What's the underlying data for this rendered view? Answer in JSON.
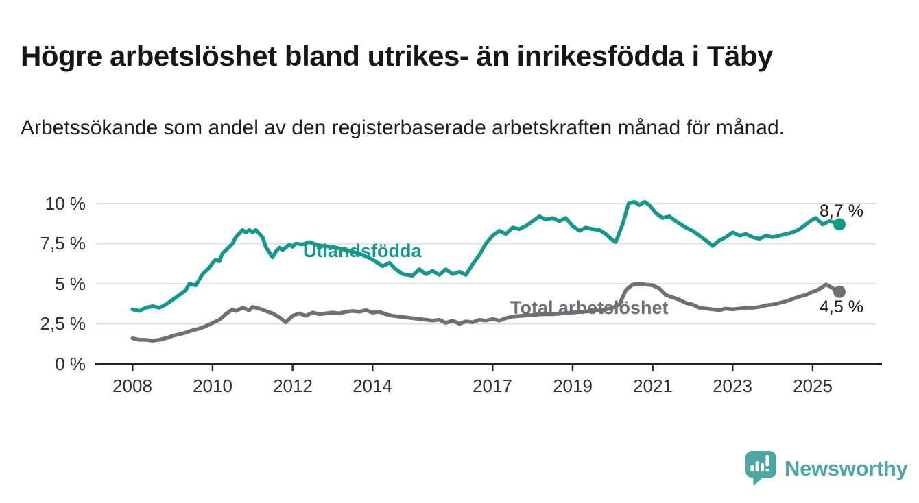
{
  "page": {
    "title": "Högre arbetslöshet bland utrikes- än inrikesfödda i Täby",
    "subtitle": "Arbetssökande som andel av den registerbaserade arbetskraften månad för månad."
  },
  "branding": {
    "name": "Newsworthy",
    "color": "#4BA8A2",
    "icon": "speech-bubble-bar-chart-icon"
  },
  "chart_data": {
    "type": "line",
    "unit": "%",
    "grid": "horizontal",
    "x_axis": {
      "labels": [
        "2008",
        "2010",
        "2012",
        "2014",
        "2017",
        "2019",
        "2021",
        "2023",
        "2025"
      ],
      "tick_values": [
        2008,
        2010,
        2012,
        2014,
        2017,
        2019,
        2021,
        2023,
        2025
      ],
      "range_years": [
        2008,
        2025.7
      ]
    },
    "y_axis": {
      "labels": [
        "10 %",
        "7,5 %",
        "5 %",
        "2,5 %",
        "0 %"
      ],
      "tick_values": [
        10,
        7.5,
        5,
        2.5,
        0
      ],
      "range": [
        0,
        10
      ]
    },
    "series": [
      {
        "id": "utlandsfodda",
        "name": "Utlandsfödda",
        "color": "#14988A",
        "end_label": "8,7 %",
        "end_value": 8.7,
        "points": [
          [
            2008.0,
            3.4
          ],
          [
            2008.17,
            3.3
          ],
          [
            2008.33,
            3.5
          ],
          [
            2008.5,
            3.6
          ],
          [
            2008.67,
            3.5
          ],
          [
            2008.83,
            3.7
          ],
          [
            2009.0,
            4.0
          ],
          [
            2009.17,
            4.3
          ],
          [
            2009.33,
            4.6
          ],
          [
            2009.42,
            5.0
          ],
          [
            2009.58,
            4.9
          ],
          [
            2009.75,
            5.6
          ],
          [
            2009.92,
            6.0
          ],
          [
            2010.0,
            6.3
          ],
          [
            2010.08,
            6.5
          ],
          [
            2010.17,
            6.4
          ],
          [
            2010.25,
            6.9
          ],
          [
            2010.42,
            7.3
          ],
          [
            2010.5,
            7.5
          ],
          [
            2010.58,
            7.9
          ],
          [
            2010.75,
            8.35
          ],
          [
            2010.83,
            8.2
          ],
          [
            2010.92,
            8.35
          ],
          [
            2011.0,
            8.2
          ],
          [
            2011.08,
            8.35
          ],
          [
            2011.25,
            7.9
          ],
          [
            2011.33,
            7.3
          ],
          [
            2011.5,
            6.65
          ],
          [
            2011.58,
            7.0
          ],
          [
            2011.67,
            7.25
          ],
          [
            2011.75,
            7.1
          ],
          [
            2011.92,
            7.45
          ],
          [
            2012.0,
            7.3
          ],
          [
            2012.08,
            7.5
          ],
          [
            2012.25,
            7.45
          ],
          [
            2012.42,
            7.6
          ],
          [
            2012.58,
            7.45
          ],
          [
            2012.75,
            7.35
          ],
          [
            2013.0,
            7.3
          ],
          [
            2013.25,
            7.15
          ],
          [
            2013.5,
            7.0
          ],
          [
            2013.75,
            6.8
          ],
          [
            2014.0,
            6.5
          ],
          [
            2014.25,
            6.1
          ],
          [
            2014.42,
            6.3
          ],
          [
            2014.58,
            5.9
          ],
          [
            2014.75,
            5.6
          ],
          [
            2015.0,
            5.5
          ],
          [
            2015.17,
            5.9
          ],
          [
            2015.33,
            5.6
          ],
          [
            2015.5,
            5.8
          ],
          [
            2015.67,
            5.55
          ],
          [
            2015.83,
            5.9
          ],
          [
            2016.0,
            5.6
          ],
          [
            2016.17,
            5.75
          ],
          [
            2016.33,
            5.55
          ],
          [
            2016.5,
            6.2
          ],
          [
            2016.67,
            6.8
          ],
          [
            2016.83,
            7.5
          ],
          [
            2017.0,
            8.0
          ],
          [
            2017.17,
            8.3
          ],
          [
            2017.33,
            8.1
          ],
          [
            2017.5,
            8.5
          ],
          [
            2017.67,
            8.4
          ],
          [
            2017.83,
            8.6
          ],
          [
            2018.0,
            8.9
          ],
          [
            2018.17,
            9.2
          ],
          [
            2018.33,
            9.0
          ],
          [
            2018.5,
            9.1
          ],
          [
            2018.67,
            8.9
          ],
          [
            2018.83,
            9.1
          ],
          [
            2019.0,
            8.6
          ],
          [
            2019.17,
            8.3
          ],
          [
            2019.33,
            8.5
          ],
          [
            2019.5,
            8.4
          ],
          [
            2019.67,
            8.35
          ],
          [
            2019.83,
            8.1
          ],
          [
            2020.0,
            7.7
          ],
          [
            2020.08,
            7.6
          ],
          [
            2020.25,
            8.7
          ],
          [
            2020.4,
            10.0
          ],
          [
            2020.55,
            10.1
          ],
          [
            2020.67,
            9.9
          ],
          [
            2020.8,
            10.1
          ],
          [
            2020.92,
            9.9
          ],
          [
            2021.08,
            9.4
          ],
          [
            2021.25,
            9.1
          ],
          [
            2021.42,
            9.2
          ],
          [
            2021.58,
            8.9
          ],
          [
            2021.83,
            8.5
          ],
          [
            2022.0,
            8.3
          ],
          [
            2022.17,
            8.0
          ],
          [
            2022.33,
            7.7
          ],
          [
            2022.5,
            7.35
          ],
          [
            2022.67,
            7.7
          ],
          [
            2022.83,
            7.9
          ],
          [
            2023.0,
            8.2
          ],
          [
            2023.17,
            8.0
          ],
          [
            2023.33,
            8.1
          ],
          [
            2023.5,
            7.9
          ],
          [
            2023.67,
            7.8
          ],
          [
            2023.83,
            8.0
          ],
          [
            2024.0,
            7.9
          ],
          [
            2024.17,
            8.0
          ],
          [
            2024.33,
            8.1
          ],
          [
            2024.5,
            8.2
          ],
          [
            2024.67,
            8.4
          ],
          [
            2024.83,
            8.7
          ],
          [
            2025.0,
            9.0
          ],
          [
            2025.08,
            9.1
          ],
          [
            2025.25,
            8.7
          ],
          [
            2025.42,
            8.9
          ],
          [
            2025.58,
            8.8
          ],
          [
            2025.67,
            8.7
          ]
        ]
      },
      {
        "id": "total",
        "name": "Total arbetslöshet",
        "color": "#6F6F74",
        "end_label": "4,5 %",
        "end_value": 4.5,
        "points": [
          [
            2008.0,
            1.6
          ],
          [
            2008.17,
            1.5
          ],
          [
            2008.33,
            1.5
          ],
          [
            2008.5,
            1.45
          ],
          [
            2008.67,
            1.5
          ],
          [
            2008.83,
            1.6
          ],
          [
            2009.0,
            1.75
          ],
          [
            2009.17,
            1.85
          ],
          [
            2009.33,
            1.95
          ],
          [
            2009.5,
            2.1
          ],
          [
            2009.67,
            2.2
          ],
          [
            2009.83,
            2.35
          ],
          [
            2010.0,
            2.55
          ],
          [
            2010.17,
            2.75
          ],
          [
            2010.33,
            3.1
          ],
          [
            2010.5,
            3.4
          ],
          [
            2010.58,
            3.3
          ],
          [
            2010.75,
            3.5
          ],
          [
            2010.92,
            3.35
          ],
          [
            2011.0,
            3.55
          ],
          [
            2011.17,
            3.45
          ],
          [
            2011.33,
            3.3
          ],
          [
            2011.5,
            3.15
          ],
          [
            2011.67,
            2.9
          ],
          [
            2011.83,
            2.6
          ],
          [
            2012.0,
            3.0
          ],
          [
            2012.17,
            3.15
          ],
          [
            2012.33,
            3.0
          ],
          [
            2012.5,
            3.2
          ],
          [
            2012.67,
            3.1
          ],
          [
            2012.83,
            3.15
          ],
          [
            2013.0,
            3.2
          ],
          [
            2013.17,
            3.15
          ],
          [
            2013.33,
            3.25
          ],
          [
            2013.5,
            3.3
          ],
          [
            2013.67,
            3.25
          ],
          [
            2013.83,
            3.35
          ],
          [
            2014.0,
            3.2
          ],
          [
            2014.17,
            3.25
          ],
          [
            2014.33,
            3.1
          ],
          [
            2014.5,
            3.0
          ],
          [
            2014.67,
            2.95
          ],
          [
            2014.83,
            2.9
          ],
          [
            2015.0,
            2.85
          ],
          [
            2015.17,
            2.8
          ],
          [
            2015.33,
            2.75
          ],
          [
            2015.5,
            2.7
          ],
          [
            2015.67,
            2.75
          ],
          [
            2015.83,
            2.55
          ],
          [
            2016.0,
            2.7
          ],
          [
            2016.17,
            2.5
          ],
          [
            2016.33,
            2.65
          ],
          [
            2016.5,
            2.6
          ],
          [
            2016.67,
            2.75
          ],
          [
            2016.83,
            2.7
          ],
          [
            2017.0,
            2.8
          ],
          [
            2017.17,
            2.7
          ],
          [
            2017.33,
            2.85
          ],
          [
            2017.5,
            2.95
          ],
          [
            2017.75,
            3.0
          ],
          [
            2018.0,
            3.05
          ],
          [
            2018.25,
            3.1
          ],
          [
            2018.5,
            3.1
          ],
          [
            2018.75,
            3.15
          ],
          [
            2019.0,
            3.2
          ],
          [
            2019.25,
            3.25
          ],
          [
            2019.5,
            3.3
          ],
          [
            2019.75,
            3.35
          ],
          [
            2020.0,
            3.5
          ],
          [
            2020.17,
            3.7
          ],
          [
            2020.33,
            4.6
          ],
          [
            2020.5,
            4.95
          ],
          [
            2020.67,
            5.0
          ],
          [
            2020.83,
            4.95
          ],
          [
            2021.0,
            4.9
          ],
          [
            2021.17,
            4.7
          ],
          [
            2021.33,
            4.3
          ],
          [
            2021.5,
            4.15
          ],
          [
            2021.67,
            4.0
          ],
          [
            2021.83,
            3.8
          ],
          [
            2022.0,
            3.7
          ],
          [
            2022.17,
            3.5
          ],
          [
            2022.33,
            3.45
          ],
          [
            2022.5,
            3.4
          ],
          [
            2022.67,
            3.35
          ],
          [
            2022.83,
            3.45
          ],
          [
            2023.0,
            3.4
          ],
          [
            2023.17,
            3.45
          ],
          [
            2023.33,
            3.5
          ],
          [
            2023.5,
            3.5
          ],
          [
            2023.67,
            3.55
          ],
          [
            2023.83,
            3.65
          ],
          [
            2024.0,
            3.7
          ],
          [
            2024.17,
            3.8
          ],
          [
            2024.33,
            3.9
          ],
          [
            2024.5,
            4.05
          ],
          [
            2024.67,
            4.2
          ],
          [
            2024.83,
            4.3
          ],
          [
            2025.0,
            4.5
          ],
          [
            2025.08,
            4.55
          ],
          [
            2025.25,
            4.8
          ],
          [
            2025.33,
            4.95
          ],
          [
            2025.42,
            4.85
          ],
          [
            2025.58,
            4.6
          ],
          [
            2025.67,
            4.5
          ]
        ]
      }
    ]
  }
}
